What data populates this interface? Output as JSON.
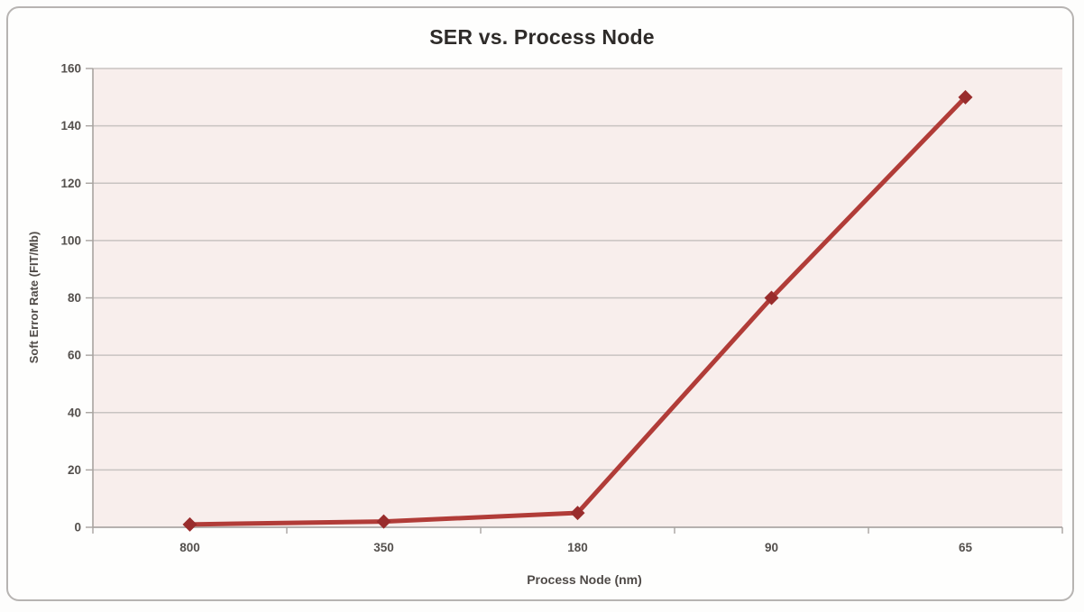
{
  "chart": {
    "title": "SER vs. Process Node",
    "xlabel": "Process Node (nm)",
    "ylabel": "Soft Error Rate (FIT/Mb)"
  },
  "chart_data": {
    "type": "line",
    "title": "SER vs. Process Node",
    "xlabel": "Process Node (nm)",
    "ylabel": "Soft Error Rate (FIT/Mb)",
    "categories": [
      "800",
      "350",
      "180",
      "90",
      "65"
    ],
    "values": [
      1,
      2,
      5,
      80,
      150
    ],
    "ylim": [
      0,
      160
    ],
    "yticks": [
      0,
      20,
      40,
      60,
      80,
      100,
      120,
      140,
      160
    ],
    "grid": "horizontal",
    "legend": "none",
    "marker": "diamond",
    "colors": {
      "line": "#b13c38",
      "marker": "#992c2c",
      "plot_bg": "#f8eeec",
      "gridline": "#c8c3c1",
      "axis": "#a8a3a0",
      "tick_text": "#54504d",
      "title_text": "#2e2b29"
    }
  }
}
